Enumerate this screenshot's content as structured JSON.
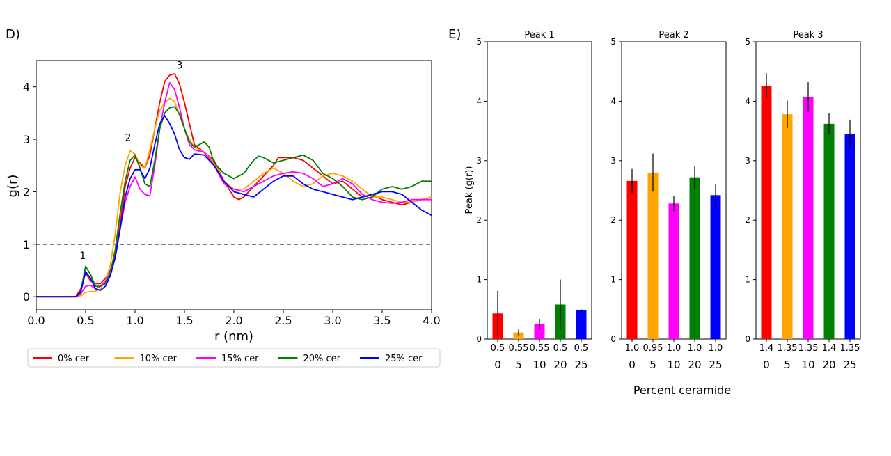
{
  "chart_data": [
    {
      "panel_label": "D)",
      "type": "line",
      "xlabel": "r (nm)",
      "ylabel": "g(r)",
      "xlim": [
        0.0,
        4.0
      ],
      "ylim": [
        -0.25,
        4.5
      ],
      "xticks": [
        "0.0",
        "0.5",
        "1.0",
        "1.5",
        "2.0",
        "2.5",
        "3.0",
        "3.5",
        "4.0"
      ],
      "yticks": [
        "0",
        "1",
        "2",
        "3",
        "4"
      ],
      "reference_line": {
        "y": 1,
        "style": "dashed",
        "color": "#000000"
      },
      "annotations": [
        {
          "text": "1",
          "x": 0.47,
          "y": 0.72
        },
        {
          "text": "2",
          "x": 0.93,
          "y": 2.97
        },
        {
          "text": "3",
          "x": 1.45,
          "y": 4.35
        }
      ],
      "legend_position": "bottom",
      "series": [
        {
          "name": "0% cer",
          "color": "#ff0000",
          "x": [
            0,
            0.4,
            0.45,
            0.5,
            0.55,
            0.6,
            0.65,
            0.7,
            0.75,
            0.8,
            0.85,
            0.9,
            0.95,
            1.0,
            1.05,
            1.1,
            1.15,
            1.2,
            1.25,
            1.3,
            1.35,
            1.4,
            1.45,
            1.5,
            1.55,
            1.6,
            1.7,
            1.8,
            1.9,
            2.0,
            2.05,
            2.1,
            2.2,
            2.3,
            2.4,
            2.45,
            2.5,
            2.6,
            2.7,
            2.8,
            2.9,
            3.0,
            3.1,
            3.2,
            3.3,
            3.4,
            3.5,
            3.6,
            3.7,
            3.8,
            3.9,
            4.0
          ],
          "y": [
            0,
            0,
            0.15,
            0.45,
            0.3,
            0.25,
            0.25,
            0.35,
            0.5,
            0.8,
            1.4,
            2.1,
            2.45,
            2.65,
            2.55,
            2.45,
            2.7,
            3.2,
            3.7,
            4.1,
            4.22,
            4.25,
            4.05,
            3.7,
            3.3,
            2.9,
            2.75,
            2.6,
            2.2,
            1.9,
            1.85,
            1.9,
            2.1,
            2.3,
            2.5,
            2.65,
            2.65,
            2.65,
            2.6,
            2.45,
            2.3,
            2.15,
            2.2,
            2.05,
            1.9,
            1.95,
            1.85,
            1.8,
            1.75,
            1.8,
            1.85,
            1.9
          ]
        },
        {
          "name": "10% cer",
          "color": "#ffa500",
          "x": [
            0,
            0.4,
            0.45,
            0.5,
            0.55,
            0.6,
            0.65,
            0.7,
            0.75,
            0.8,
            0.85,
            0.9,
            0.95,
            1.0,
            1.05,
            1.1,
            1.15,
            1.2,
            1.25,
            1.3,
            1.35,
            1.4,
            1.45,
            1.5,
            1.55,
            1.6,
            1.7,
            1.8,
            1.9,
            2.0,
            2.1,
            2.2,
            2.3,
            2.4,
            2.5,
            2.6,
            2.7,
            2.8,
            2.9,
            3.0,
            3.1,
            3.2,
            3.3,
            3.4,
            3.5,
            3.6,
            3.7,
            3.8,
            3.9,
            4.0
          ],
          "y": [
            0,
            0,
            0.02,
            0.08,
            0.1,
            0.1,
            0.15,
            0.3,
            0.6,
            1.2,
            2.0,
            2.5,
            2.78,
            2.72,
            2.5,
            2.45,
            2.8,
            3.2,
            3.55,
            3.7,
            3.78,
            3.72,
            3.45,
            3.2,
            3.0,
            2.85,
            2.75,
            2.55,
            2.2,
            2.05,
            2.05,
            2.2,
            2.35,
            2.45,
            2.35,
            2.2,
            2.1,
            2.15,
            2.3,
            2.35,
            2.3,
            2.2,
            2.05,
            1.9,
            1.9,
            1.85,
            1.8,
            1.8,
            1.85,
            1.9
          ]
        },
        {
          "name": "15% cer",
          "color": "#ff00ff",
          "x": [
            0,
            0.4,
            0.45,
            0.5,
            0.55,
            0.6,
            0.65,
            0.7,
            0.75,
            0.8,
            0.85,
            0.9,
            0.95,
            1.0,
            1.05,
            1.1,
            1.15,
            1.2,
            1.25,
            1.3,
            1.35,
            1.4,
            1.45,
            1.5,
            1.55,
            1.6,
            1.7,
            1.8,
            1.9,
            2.0,
            2.1,
            2.2,
            2.3,
            2.4,
            2.5,
            2.6,
            2.7,
            2.8,
            2.9,
            3.0,
            3.1,
            3.2,
            3.3,
            3.4,
            3.5,
            3.6,
            3.7,
            3.8,
            3.9,
            4.0
          ],
          "y": [
            0,
            0,
            0.05,
            0.2,
            0.22,
            0.15,
            0.2,
            0.3,
            0.45,
            0.75,
            1.3,
            1.8,
            2.1,
            2.28,
            2.05,
            1.95,
            1.92,
            2.5,
            3.2,
            3.7,
            4.08,
            3.95,
            3.6,
            3.2,
            2.9,
            2.8,
            2.75,
            2.5,
            2.15,
            2.05,
            2.0,
            2.1,
            2.2,
            2.3,
            2.35,
            2.38,
            2.35,
            2.25,
            2.1,
            2.15,
            2.25,
            2.15,
            1.95,
            1.85,
            1.8,
            1.78,
            1.8,
            1.85,
            1.85,
            1.85
          ]
        },
        {
          "name": "20% cer",
          "color": "#008000",
          "x": [
            0,
            0.4,
            0.45,
            0.5,
            0.55,
            0.6,
            0.65,
            0.7,
            0.75,
            0.8,
            0.85,
            0.9,
            0.95,
            1.0,
            1.05,
            1.1,
            1.15,
            1.2,
            1.25,
            1.3,
            1.35,
            1.4,
            1.45,
            1.5,
            1.55,
            1.6,
            1.7,
            1.75,
            1.8,
            1.9,
            2.0,
            2.1,
            2.2,
            2.25,
            2.3,
            2.4,
            2.5,
            2.6,
            2.7,
            2.8,
            2.9,
            3.0,
            3.1,
            3.2,
            3.3,
            3.4,
            3.5,
            3.6,
            3.7,
            3.8,
            3.9,
            4.0
          ],
          "y": [
            0,
            0,
            0.1,
            0.58,
            0.42,
            0.2,
            0.2,
            0.25,
            0.45,
            0.9,
            1.6,
            2.2,
            2.6,
            2.7,
            2.45,
            2.15,
            2.1,
            2.6,
            3.2,
            3.5,
            3.6,
            3.62,
            3.48,
            3.2,
            2.95,
            2.85,
            2.95,
            2.85,
            2.55,
            2.35,
            2.25,
            2.35,
            2.6,
            2.68,
            2.65,
            2.55,
            2.6,
            2.65,
            2.7,
            2.6,
            2.35,
            2.25,
            2.1,
            1.9,
            1.85,
            1.9,
            2.05,
            2.1,
            2.05,
            2.1,
            2.2,
            2.2
          ]
        },
        {
          "name": "25% cer",
          "color": "#0000ff",
          "x": [
            0,
            0.4,
            0.45,
            0.5,
            0.55,
            0.6,
            0.65,
            0.7,
            0.75,
            0.8,
            0.85,
            0.9,
            0.95,
            1.0,
            1.05,
            1.1,
            1.15,
            1.2,
            1.25,
            1.3,
            1.35,
            1.4,
            1.45,
            1.5,
            1.55,
            1.6,
            1.7,
            1.8,
            1.9,
            2.0,
            2.1,
            2.2,
            2.3,
            2.4,
            2.5,
            2.6,
            2.7,
            2.8,
            2.9,
            3.0,
            3.1,
            3.2,
            3.3,
            3.4,
            3.5,
            3.6,
            3.7,
            3.8,
            3.9,
            4.0
          ],
          "y": [
            0,
            0,
            0.08,
            0.48,
            0.35,
            0.15,
            0.12,
            0.2,
            0.4,
            0.75,
            1.3,
            1.9,
            2.25,
            2.42,
            2.42,
            2.25,
            2.45,
            2.9,
            3.3,
            3.45,
            3.3,
            3.1,
            2.8,
            2.65,
            2.62,
            2.72,
            2.7,
            2.5,
            2.2,
            2.0,
            1.95,
            1.9,
            2.05,
            2.2,
            2.3,
            2.3,
            2.15,
            2.05,
            2.0,
            1.95,
            1.9,
            1.85,
            1.9,
            1.95,
            2.0,
            2.0,
            1.95,
            1.8,
            1.65,
            1.55
          ]
        }
      ]
    },
    {
      "panel_label": "E)",
      "type": "bar",
      "ylabel": "Peak (g(r))",
      "xlabel": "Percent ceramide",
      "ylim": [
        0,
        5
      ],
      "yticks": [
        "0",
        "1",
        "2",
        "3",
        "4",
        "5"
      ],
      "categories": [
        "0",
        "5",
        "10",
        "20",
        "25"
      ],
      "bar_colors": [
        "#ff0000",
        "#ffa500",
        "#ff00ff",
        "#008000",
        "#0000ff"
      ],
      "panels": [
        {
          "title": "Peak 1",
          "position_labels": [
            "0.5",
            "0.55",
            "0.55",
            "0.5",
            "0.5"
          ],
          "values": [
            0.43,
            0.11,
            0.25,
            0.58,
            0.48
          ],
          "errors": [
            0.38,
            0.05,
            0.09,
            0.42,
            0.02
          ]
        },
        {
          "title": "Peak 2",
          "position_labels": [
            "1.0",
            "0.95",
            "1.0",
            "1.0",
            "1.0"
          ],
          "values": [
            2.66,
            2.8,
            2.28,
            2.72,
            2.42
          ],
          "errors": [
            0.2,
            0.32,
            0.13,
            0.19,
            0.19
          ]
        },
        {
          "title": "Peak 3",
          "position_labels": [
            "1.4",
            "1.35",
            "1.35",
            "1.4",
            "1.35"
          ],
          "values": [
            4.26,
            3.78,
            4.07,
            3.62,
            3.45
          ],
          "errors": [
            0.21,
            0.23,
            0.25,
            0.18,
            0.24
          ]
        }
      ]
    }
  ]
}
